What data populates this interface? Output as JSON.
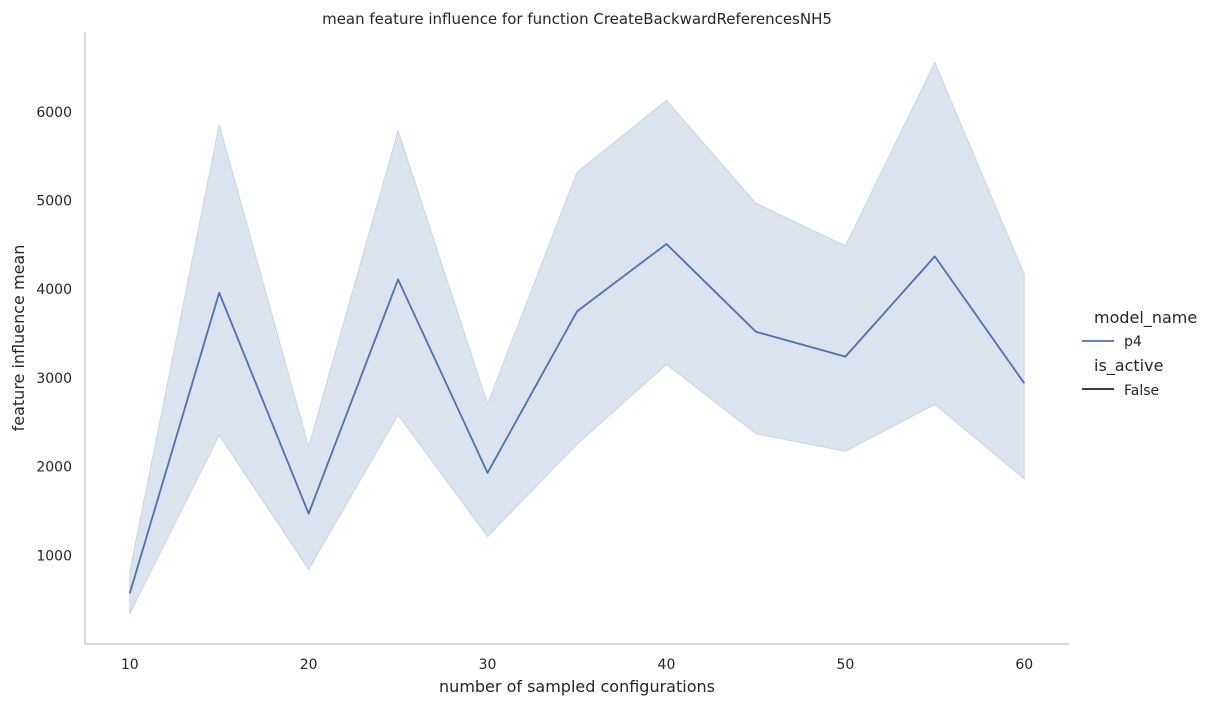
{
  "chart_data": {
    "type": "line",
    "title": "mean feature influence for function CreateBackwardReferencesNH5",
    "xlabel": "number of sampled configurations",
    "ylabel": "feature influence mean",
    "x": [
      10,
      15,
      20,
      25,
      30,
      35,
      40,
      45,
      50,
      55,
      60
    ],
    "xlim": [
      7.5,
      62.5
    ],
    "ylim": [
      0,
      6900
    ],
    "xticks": [
      "10",
      "20",
      "30",
      "40",
      "50",
      "60"
    ],
    "yticks": [
      "1000",
      "2000",
      "3000",
      "4000",
      "5000",
      "6000"
    ],
    "grid": false,
    "series": [
      {
        "name": "p4",
        "color": "#4c72b0",
        "values": [
          570,
          3960,
          1470,
          4110,
          1930,
          3750,
          4510,
          3520,
          3240,
          4370,
          2940
        ],
        "ci_upper": [
          820,
          5860,
          2230,
          5790,
          2710,
          5320,
          6130,
          4970,
          4490,
          6560,
          4170
        ],
        "ci_lower": [
          340,
          2350,
          840,
          2580,
          1210,
          2250,
          3150,
          2370,
          2170,
          2700,
          1860
        ]
      }
    ],
    "legend": {
      "placement": "right",
      "hue_title": "model_name",
      "hue_entries": [
        {
          "label": "p4",
          "color": "#4c72b0"
        }
      ],
      "style_title": "is_active",
      "style_entries": [
        {
          "label": "False",
          "color": "#262626"
        }
      ]
    }
  }
}
